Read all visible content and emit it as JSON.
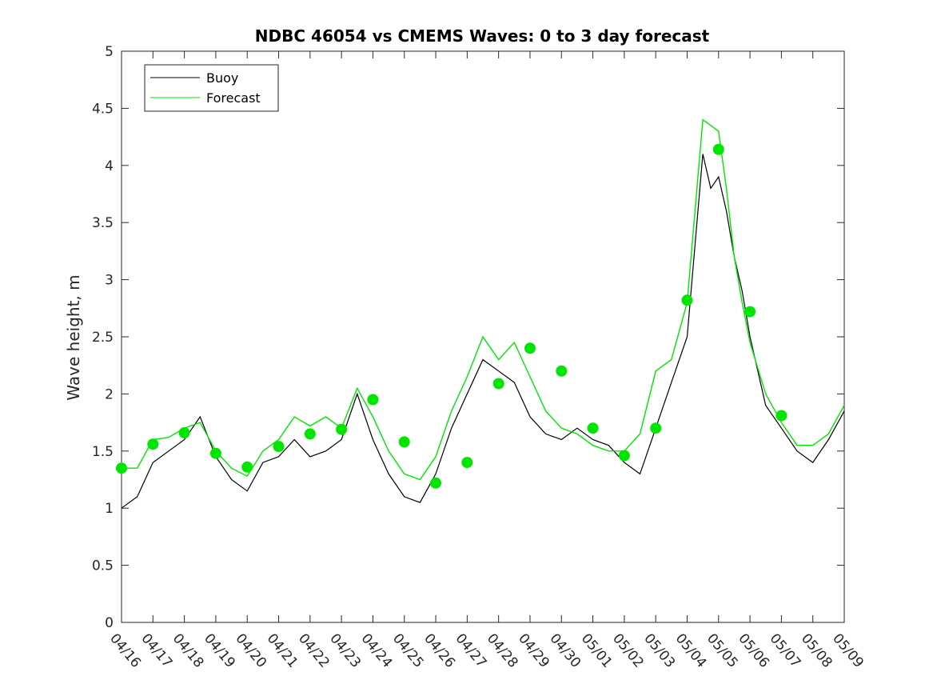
{
  "chart_data": {
    "type": "line",
    "title": "NDBC 46054 vs CMEMS Waves: 0 to 3 day forecast",
    "xlabel": "",
    "ylabel": "Wave height, m",
    "ylim": [
      0,
      5
    ],
    "yticks": [
      "0",
      "0.5",
      "1",
      "1.5",
      "2",
      "2.5",
      "3",
      "3.5",
      "4",
      "4.5",
      "5"
    ],
    "xlim_day": [
      0,
      23
    ],
    "xticks": [
      "04/16",
      "04/17",
      "04/18",
      "04/19",
      "04/20",
      "04/21",
      "04/22",
      "04/23",
      "04/24",
      "04/25",
      "04/26",
      "04/27",
      "04/28",
      "04/29",
      "04/30",
      "05/01",
      "05/02",
      "05/03",
      "05/04",
      "05/05",
      "05/06",
      "05/07",
      "05/08",
      "05/09"
    ],
    "grid": false,
    "legend_position": "top-left",
    "colors": {
      "buoy": "#000000",
      "forecast": "#00e600"
    },
    "series": [
      {
        "name": "Buoy",
        "x": [
          0,
          0.5,
          1,
          1.5,
          2,
          2.5,
          3,
          3.5,
          4,
          4.5,
          5,
          5.5,
          6,
          6.5,
          7,
          7.5,
          8,
          8.5,
          9,
          9.5,
          10,
          10.5,
          11,
          11.5,
          12,
          12.5,
          13,
          13.5,
          14,
          14.5,
          15,
          15.5,
          16,
          16.5,
          17,
          17.5,
          18,
          18.25,
          18.5,
          18.75,
          19,
          19.25,
          19.5,
          19.75,
          20,
          20.5,
          21,
          21.5,
          22,
          22.5,
          23
        ],
        "y": [
          1.0,
          1.1,
          1.4,
          1.5,
          1.6,
          1.8,
          1.45,
          1.25,
          1.15,
          1.4,
          1.45,
          1.6,
          1.45,
          1.5,
          1.6,
          2.0,
          1.6,
          1.3,
          1.1,
          1.05,
          1.3,
          1.7,
          2.0,
          2.3,
          2.2,
          2.1,
          1.8,
          1.65,
          1.6,
          1.7,
          1.6,
          1.55,
          1.4,
          1.3,
          1.7,
          2.1,
          2.5,
          3.3,
          4.1,
          3.8,
          3.9,
          3.6,
          3.2,
          2.9,
          2.5,
          1.9,
          1.7,
          1.5,
          1.4,
          1.6,
          1.85
        ]
      },
      {
        "name": "Forecast",
        "x": [
          0,
          0.5,
          1,
          1.5,
          2,
          2.5,
          3,
          3.5,
          4,
          4.5,
          5,
          5.5,
          6,
          6.5,
          7,
          7.5,
          8,
          8.5,
          9,
          9.5,
          10,
          10.5,
          11,
          11.5,
          12,
          12.5,
          13,
          13.5,
          14,
          14.5,
          15,
          15.5,
          16,
          16.5,
          17,
          17.5,
          18,
          18.25,
          18.5,
          18.75,
          19,
          19.25,
          19.5,
          19.75,
          20,
          20.5,
          21,
          21.5,
          22,
          22.5,
          23
        ],
        "y": [
          1.35,
          1.35,
          1.6,
          1.62,
          1.7,
          1.75,
          1.5,
          1.35,
          1.28,
          1.5,
          1.6,
          1.8,
          1.72,
          1.8,
          1.7,
          2.05,
          1.8,
          1.5,
          1.3,
          1.25,
          1.45,
          1.85,
          2.15,
          2.5,
          2.3,
          2.45,
          2.15,
          1.85,
          1.7,
          1.65,
          1.55,
          1.5,
          1.5,
          1.65,
          2.2,
          2.3,
          2.8,
          3.6,
          4.4,
          4.35,
          4.3,
          3.8,
          3.2,
          2.8,
          2.45,
          2.0,
          1.75,
          1.55,
          1.55,
          1.65,
          1.9
        ]
      },
      {
        "name": "",
        "x": [
          0,
          1,
          2,
          3,
          4,
          5,
          6,
          7,
          8,
          9,
          10,
          11,
          12,
          13,
          14,
          15,
          16,
          17,
          18,
          19,
          20,
          21
        ],
        "y": [
          1.35,
          1.56,
          1.66,
          1.48,
          1.36,
          1.54,
          1.65,
          1.69,
          1.95,
          1.58,
          1.22,
          1.4,
          2.09,
          2.4,
          2.2,
          1.7,
          1.46,
          1.7,
          2.82,
          4.14,
          2.72,
          1.81
        ]
      }
    ],
    "legend": [
      {
        "label": "Buoy",
        "color": "#000000"
      },
      {
        "label": "Forecast",
        "color": "#00e600"
      }
    ]
  }
}
